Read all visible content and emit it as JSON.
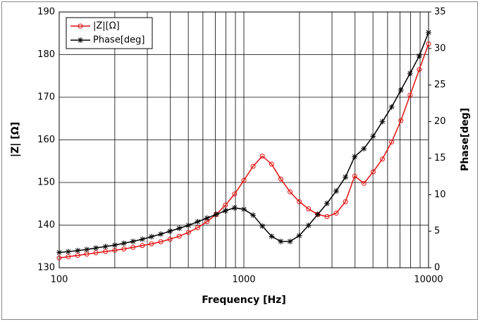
{
  "chart_data": {
    "type": "line",
    "x_label": "Frequency [Hz]",
    "y_label": "|Z| [Ω]",
    "y2_label": "Phase[deg]",
    "x": [
      100,
      112,
      126,
      141,
      158,
      178,
      200,
      224,
      251,
      282,
      316,
      355,
      398,
      447,
      501,
      562,
      631,
      708,
      794,
      891,
      1000,
      1122,
      1259,
      1413,
      1585,
      1778,
      1995,
      2239,
      2512,
      2818,
      3162,
      3548,
      3981,
      4467,
      5012,
      5623,
      6310,
      7079,
      7943,
      8913,
      10000
    ],
    "series": [
      {
        "name": "|Z|[Ω]",
        "color": "#e01010",
        "marker": "circle",
        "values": [
          132.3,
          132.6,
          132.9,
          133.2,
          133.5,
          133.8,
          134.1,
          134.4,
          134.8,
          135.2,
          135.6,
          136.1,
          136.7,
          137.4,
          138.3,
          139.4,
          140.8,
          142.5,
          144.7,
          147.3,
          150.5,
          153.8,
          156.2,
          154.3,
          150.8,
          147.8,
          145.5,
          143.8,
          142.5,
          142.0,
          142.8,
          145.5,
          151.5,
          149.8,
          152.5,
          155.5,
          159.5,
          164.5,
          170.5,
          176.5,
          182.5
        ]
      },
      {
        "name": "Phase[deg]",
        "color": "#000000",
        "marker": "star",
        "axis": "y2",
        "values": [
          2.1,
          2.2,
          2.35,
          2.5,
          2.7,
          2.9,
          3.1,
          3.35,
          3.6,
          3.9,
          4.25,
          4.6,
          5.0,
          5.4,
          5.8,
          6.3,
          6.8,
          7.3,
          7.8,
          8.2,
          8.0,
          7.2,
          5.7,
          4.3,
          3.6,
          3.6,
          4.4,
          5.8,
          7.3,
          8.8,
          10.5,
          12.4,
          15.2,
          16.3,
          18.0,
          20.0,
          22.0,
          24.3,
          26.6,
          29.0,
          32.2
        ]
      }
    ],
    "log_x": true,
    "grid": true,
    "xlim": [
      100,
      10000
    ],
    "xticks": [
      100,
      1000,
      10000
    ],
    "xminor_ticks": [
      200,
      300,
      400,
      500,
      600,
      700,
      800,
      900,
      2000,
      3000,
      4000,
      5000,
      6000,
      7000,
      8000,
      9000
    ],
    "ylim": [
      130,
      190
    ],
    "yticks": [
      130,
      140,
      150,
      160,
      170,
      180,
      190
    ],
    "y2lim": [
      0,
      35
    ],
    "y2ticks": [
      0,
      5,
      10,
      15,
      20,
      25,
      30,
      35
    ],
    "legend": "upper left"
  }
}
